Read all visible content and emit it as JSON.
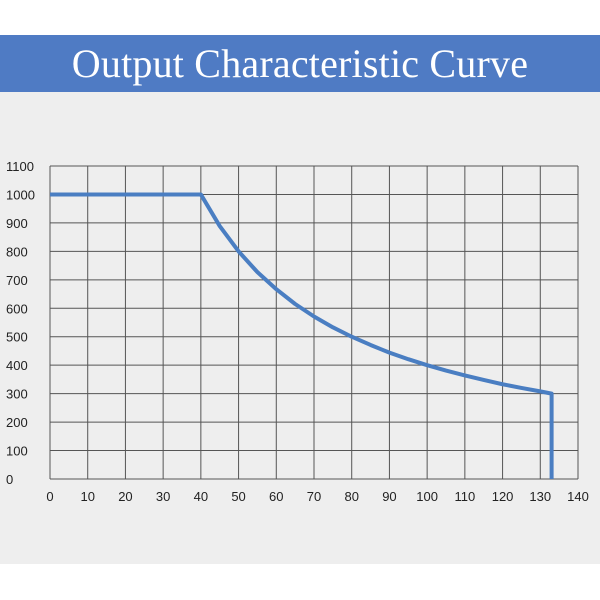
{
  "header": {
    "title": "Output Characteristic Curve",
    "background_color": "#4f7bc4",
    "text_color": "#ffffff"
  },
  "chart_data": {
    "type": "line",
    "title": "Output Characteristic Curve",
    "xlabel": "",
    "ylabel": "",
    "xlim": [
      0,
      140
    ],
    "ylim": [
      0,
      1100
    ],
    "x_ticks": [
      0,
      10,
      20,
      30,
      40,
      50,
      60,
      70,
      80,
      90,
      100,
      110,
      120,
      130,
      140
    ],
    "y_ticks": [
      0,
      100,
      200,
      300,
      400,
      500,
      600,
      700,
      800,
      900,
      1000,
      1100
    ],
    "grid": true,
    "line_color": "#4a7ec2",
    "series": [
      {
        "x": [
          0,
          40,
          45,
          50,
          55,
          60,
          65,
          70,
          75,
          80,
          85,
          90,
          95,
          100,
          105,
          110,
          115,
          120,
          125,
          130,
          133,
          133
        ],
        "y": [
          1000,
          1000,
          889,
          800,
          727,
          667,
          615,
          571,
          533,
          500,
          471,
          444,
          421,
          400,
          381,
          364,
          348,
          333,
          320,
          308,
          300,
          0
        ]
      }
    ]
  }
}
